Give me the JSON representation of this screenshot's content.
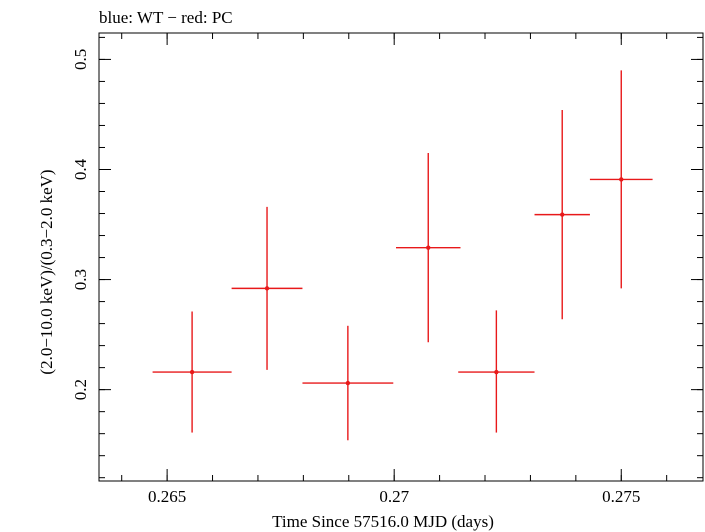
{
  "chart_data": {
    "type": "scatter",
    "title": "blue: WT − red: PC",
    "xlabel": "Time Since 57516.0 MJD (days)",
    "ylabel": "(2.0−10.0 keV)/(0.3−2.0 keV)",
    "xlim": [
      0.2635,
      0.2768
    ],
    "ylim": [
      0.117,
      0.524
    ],
    "x_ticks": [
      {
        "value": 0.265,
        "label": "0.265"
      },
      {
        "value": 0.27,
        "label": "0.27"
      },
      {
        "value": 0.275,
        "label": "0.275"
      }
    ],
    "y_ticks": [
      {
        "value": 0.2,
        "label": "0.2"
      },
      {
        "value": 0.3,
        "label": "0.3"
      },
      {
        "value": 0.4,
        "label": "0.4"
      },
      {
        "value": 0.5,
        "label": "0.5"
      }
    ],
    "series": [
      {
        "name": "PC",
        "color": "#e8191a",
        "points": [
          {
            "x": 0.26555,
            "y": 0.216,
            "xerr": 0.00087,
            "yerr_low": 0.055,
            "yerr_high": 0.055
          },
          {
            "x": 0.2672,
            "y": 0.292,
            "xerr": 0.00078,
            "yerr_low": 0.074,
            "yerr_high": 0.074
          },
          {
            "x": 0.26898,
            "y": 0.206,
            "xerr": 0.001,
            "yerr_low": 0.052,
            "yerr_high": 0.052
          },
          {
            "x": 0.27075,
            "y": 0.329,
            "xerr": 0.00071,
            "yerr_low": 0.086,
            "yerr_high": 0.086
          },
          {
            "x": 0.27225,
            "y": 0.216,
            "xerr": 0.00084,
            "yerr_low": 0.055,
            "yerr_high": 0.056
          },
          {
            "x": 0.2737,
            "y": 0.359,
            "xerr": 0.00061,
            "yerr_low": 0.095,
            "yerr_high": 0.095
          },
          {
            "x": 0.275,
            "y": 0.391,
            "xerr": 0.00069,
            "yerr_low": 0.099,
            "yerr_high": 0.099
          }
        ]
      }
    ]
  }
}
